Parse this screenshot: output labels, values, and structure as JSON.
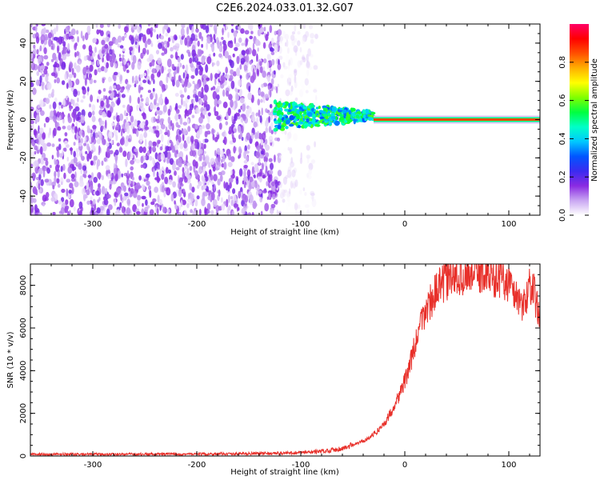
{
  "title": "C2E6.2024.033.01.32.G07",
  "chart_data": [
    {
      "type": "heatmap",
      "xlabel": "Height of straight line (km)",
      "ylabel": "Frequency (Hz)",
      "xlim": [
        -360,
        130
      ],
      "ylim": [
        -50,
        50
      ],
      "x_ticks": [
        -300,
        -200,
        -100,
        0,
        100
      ],
      "y_ticks": [
        -40,
        -20,
        0,
        20,
        40
      ],
      "colorbar": {
        "label": "Normalized spectral amplitude",
        "range": [
          0,
          1
        ],
        "ticks": [
          0.0,
          0.2,
          0.4,
          0.6,
          0.8
        ],
        "colors": [
          "#ffffff",
          "#c9a6f2",
          "#8a2be2",
          "#3a2bf0",
          "#0055ff",
          "#00c8ff",
          "#00ffc8",
          "#00ff40",
          "#80ff00",
          "#ffff00",
          "#ffb000",
          "#ff5000",
          "#ff0000",
          "#ff0066"
        ]
      },
      "regions": [
        {
          "x_range": [
            -360,
            -120
          ],
          "freq_range": [
            -50,
            50
          ],
          "amplitude_range": [
            0.02,
            0.18
          ],
          "pattern": "noise"
        },
        {
          "x_range": [
            -120,
            -85
          ],
          "freq_range": [
            -50,
            50
          ],
          "amplitude_range": [
            0.0,
            0.05
          ],
          "pattern": "sparse-noise"
        },
        {
          "x_range": [
            -125,
            -30
          ],
          "freq_range": [
            -5,
            10
          ],
          "amplitude_range": [
            0.3,
            0.6
          ],
          "pattern": "signal-blob"
        },
        {
          "x_range": [
            -30,
            130
          ],
          "freq": 0,
          "amplitude": 0.85,
          "pattern": "carrier-line"
        }
      ]
    },
    {
      "type": "line",
      "xlabel": "Height of straight line (km)",
      "ylabel": "SNR (10 * v/v)",
      "xlim": [
        -360,
        130
      ],
      "ylim": [
        0,
        9000
      ],
      "x_ticks": [
        -300,
        -200,
        -100,
        0,
        100
      ],
      "y_ticks": [
        0,
        2000,
        4000,
        6000,
        8000
      ],
      "color": "#e8302a",
      "series": [
        {
          "x": [
            -360,
            -300,
            -200,
            -150,
            -120,
            -100,
            -80,
            -60,
            -50,
            -40,
            -30,
            -20,
            -15,
            -10,
            -5,
            0,
            5,
            10,
            15,
            20,
            25,
            30,
            35,
            40,
            45,
            50,
            55,
            60,
            65,
            70,
            75,
            80,
            85,
            90,
            95,
            100,
            105,
            110,
            115,
            120,
            125,
            130
          ],
          "y": [
            80,
            80,
            90,
            110,
            130,
            150,
            220,
            350,
            500,
            700,
            1000,
            1500,
            1900,
            2400,
            2900,
            3500,
            4300,
            5200,
            6100,
            6800,
            7300,
            7700,
            8000,
            8200,
            8400,
            8500,
            8550,
            8600,
            8650,
            8600,
            8550,
            8500,
            8450,
            8400,
            8300,
            8100,
            7700,
            7300,
            7000,
            8200,
            7500,
            6500
          ]
        }
      ]
    }
  ]
}
